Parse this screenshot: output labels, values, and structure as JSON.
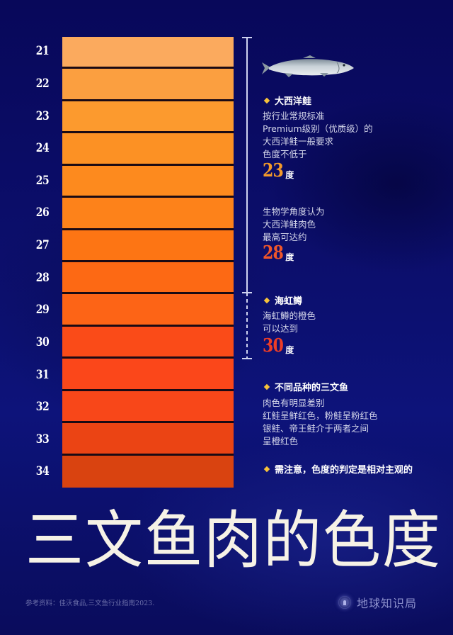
{
  "chart_data": {
    "type": "table",
    "title": "三文鱼肉的色度",
    "description": "Salmon color scale (SalmoFan-style) from 21 to 34, each level shown as an orange band",
    "categories": [
      "21",
      "22",
      "23",
      "24",
      "25",
      "26",
      "27",
      "28",
      "29",
      "30",
      "31",
      "32",
      "33",
      "34"
    ],
    "values": [
      21,
      22,
      23,
      24,
      25,
      26,
      27,
      28,
      29,
      30,
      31,
      32,
      33,
      34
    ],
    "colors": [
      "#fbaa5e",
      "#fb9f40",
      "#fc9a2e",
      "#fc9124",
      "#fd8a1e",
      "#fd821a",
      "#fd7514",
      "#fd6914",
      "#fd6416",
      "#fa4b18",
      "#fb471a",
      "#f84719",
      "#eb4414",
      "#d94310"
    ],
    "annotations": [
      {
        "species": "大西洋鲑",
        "threshold": 23,
        "note": "Premium级别最低色度"
      },
      {
        "species": "大西洋鲑",
        "threshold": 28,
        "note": "生物学最高可达约"
      },
      {
        "species": "海虹鳟",
        "threshold": 30,
        "note": "橙色可以达到"
      }
    ],
    "xlabel": "",
    "ylabel": "色度",
    "ylim": [
      21,
      34
    ]
  },
  "scale": {
    "labels": [
      "21",
      "22",
      "23",
      "24",
      "25",
      "26",
      "27",
      "28",
      "29",
      "30",
      "31",
      "32",
      "33",
      "34"
    ]
  },
  "notes": {
    "atlantic": {
      "heading": "大西洋鲑",
      "lines": [
        "按行业常规标准",
        "Premium级别（优质级）的",
        "大西洋鲑一般要求",
        "色度不低于"
      ],
      "value1": "23",
      "value1_color": "#f49a2a",
      "unit": "度",
      "lines2": [
        "生物学角度认为",
        "大西洋鲑肉色",
        "最高可达约"
      ],
      "value2": "28",
      "value2_color": "#f0562a"
    },
    "trout": {
      "heading": "海虹鳟",
      "lines": [
        "海虹鳟的橙色",
        "可以达到"
      ],
      "value": "30",
      "value_color": "#ee3d26",
      "unit": "度"
    },
    "species": {
      "heading": "不同品种的三文鱼",
      "lines": [
        "肉色有明显差别",
        "红鲑呈鲜红色，粉鲑呈粉红色",
        "银鲑、帝王鲑介于两者之间",
        "呈橙红色"
      ]
    },
    "caution": {
      "heading": "需注意，色度的判定是相对主观的"
    }
  },
  "title": "三文鱼肉的色度",
  "footer": {
    "source": "参考资料：佳沃食品,三文鱼行业指南2023.",
    "brand": "地球知识局"
  },
  "colors": {
    "background": "#0b0e6a",
    "diamond": "#f7c23a",
    "bracket": "#cfd3f0"
  }
}
